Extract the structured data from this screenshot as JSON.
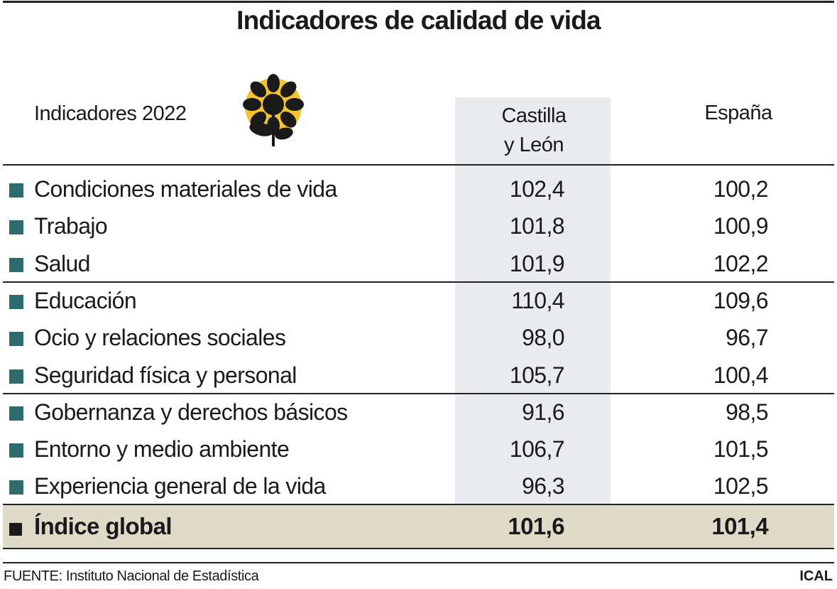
{
  "title": "Indicadores de calidad de vida",
  "colors": {
    "marker": "#2e6b6e",
    "highlight_column": "#e9ebee",
    "global_row": "#dedbc9",
    "logo_sun": "#f2c230"
  },
  "logo_icon": "flower-sun-icon",
  "chart_data": {
    "type": "table",
    "title": "Indicadores de calidad de vida",
    "columns": [
      "Indicadores 2022",
      "Castilla y León",
      "España"
    ],
    "column_header_cyl": "Castilla",
    "column_header_cyl_2": "y León",
    "rows": [
      {
        "label": "Condiciones materiales de vida",
        "cyl": "102,4",
        "es": "100,2"
      },
      {
        "label": "Trabajo",
        "cyl": "101,8",
        "es": "100,9"
      },
      {
        "label": "Salud",
        "cyl": "101,9",
        "es": "102,2"
      },
      {
        "label": "Educación",
        "cyl": "110,4",
        "es": "109,6"
      },
      {
        "label": "Ocio y relaciones sociales",
        "cyl": "98,0",
        "es": "96,7"
      },
      {
        "label": "Seguridad física y personal",
        "cyl": "105,7",
        "es": "100,4"
      },
      {
        "label": "Gobernanza y derechos básicos",
        "cyl": "91,6",
        "es": "98,5"
      },
      {
        "label": "Entorno y medio ambiente",
        "cyl": "106,7",
        "es": "101,5"
      },
      {
        "label": "Experiencia general de la vida",
        "cyl": "96,3",
        "es": "102,5"
      }
    ],
    "total": {
      "label": "Índice global",
      "cyl": "101,6",
      "es": "101,4"
    }
  },
  "footer": {
    "source": "FUENTE: Instituto Nacional de Estadística",
    "brand": "ICAL"
  }
}
